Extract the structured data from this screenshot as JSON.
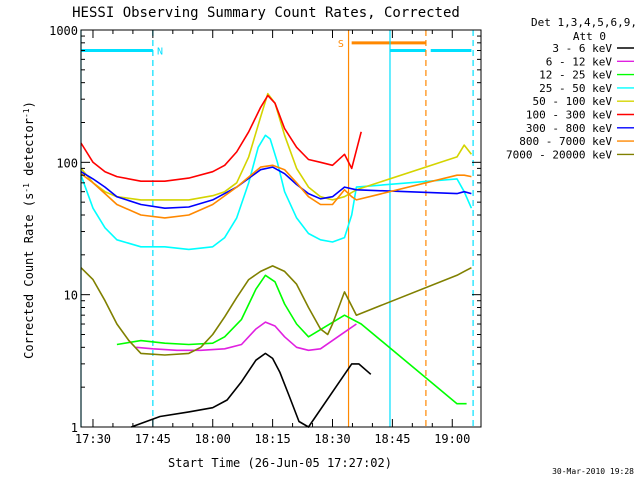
{
  "chart_data": {
    "type": "line",
    "title": "HESSI Observing Summary Count Rates, Corrected",
    "xlabel": "Start Time (26-Jun-05 17:27:02)",
    "ylabel": "Corrected Count Rate (s⁻¹ detector⁻¹)",
    "ylabel_main": "Corrected Count Rate (s",
    "ylabel_sup1": "-1",
    "ylabel_mid": " detector",
    "ylabel_sup2": "-1",
    "ylabel_end": ")",
    "scale_y": "log",
    "xlim": [
      17.45,
      19.12
    ],
    "ylim": [
      1,
      1000
    ],
    "x_ticks": [
      {
        "t": 17.5,
        "label": "17:30"
      },
      {
        "t": 17.75,
        "label": "17:45"
      },
      {
        "t": 18.0,
        "label": "18:00"
      },
      {
        "t": 18.25,
        "label": "18:15"
      },
      {
        "t": 18.5,
        "label": "18:30"
      },
      {
        "t": 18.75,
        "label": "18:45"
      },
      {
        "t": 19.0,
        "label": "19:00"
      }
    ],
    "y_ticks": [
      {
        "v": 1,
        "label": "1"
      },
      {
        "v": 10,
        "label": "10"
      },
      {
        "v": 100,
        "label": "100"
      },
      {
        "v": 1000,
        "label": "1000"
      }
    ],
    "legend": {
      "position": "right",
      "header": [
        "Det 1,3,4,5,6,9,",
        "Att 0"
      ]
    },
    "series": [
      {
        "name": "3 - 6 keV",
        "color": "#000000",
        "x": [
          17.66,
          17.78,
          17.9,
          18.0,
          18.06,
          18.12,
          18.18,
          18.22,
          18.25,
          18.28,
          18.32,
          18.36,
          18.4,
          18.58,
          18.61,
          18.66
        ],
        "y": [
          1,
          1.2,
          1.3,
          1.4,
          1.6,
          2.2,
          3.2,
          3.6,
          3.3,
          2.6,
          1.7,
          1.1,
          1,
          3,
          3,
          2.5
        ]
      },
      {
        "name": "6 - 12 keV",
        "color": "#e020e0",
        "x": [
          17.68,
          17.75,
          17.85,
          17.95,
          18.05,
          18.12,
          18.18,
          18.22,
          18.26,
          18.3,
          18.35,
          18.4,
          18.45,
          18.55,
          18.6
        ],
        "y": [
          4.0,
          3.9,
          3.8,
          3.8,
          3.9,
          4.2,
          5.5,
          6.2,
          5.8,
          4.8,
          4.0,
          3.8,
          3.9,
          5.2,
          6.0
        ]
      },
      {
        "name": "12 - 25 keV",
        "color": "#00ff00",
        "x": [
          17.6,
          17.7,
          17.8,
          17.9,
          18.0,
          18.05,
          18.12,
          18.18,
          18.22,
          18.26,
          18.3,
          18.35,
          18.4,
          18.55,
          18.62,
          19.02,
          19.06
        ],
        "y": [
          4.2,
          4.5,
          4.3,
          4.2,
          4.3,
          4.8,
          6.5,
          11,
          14,
          12.5,
          8.5,
          6,
          4.8,
          7,
          6,
          1.5,
          1.5
        ]
      },
      {
        "name": "25 - 50 keV",
        "color": "#00ffff",
        "x": [
          17.45,
          17.5,
          17.55,
          17.6,
          17.7,
          17.8,
          17.9,
          18.0,
          18.05,
          18.1,
          18.15,
          18.19,
          18.22,
          18.24,
          18.27,
          18.3,
          18.35,
          18.4,
          18.45,
          18.5,
          18.55,
          18.58,
          18.6,
          19.02,
          19.05,
          19.08
        ],
        "y": [
          80,
          45,
          32,
          26,
          23,
          23,
          22,
          23,
          27,
          38,
          70,
          130,
          160,
          150,
          100,
          60,
          38,
          29,
          26,
          25,
          27,
          40,
          65,
          75,
          60,
          45
        ]
      },
      {
        "name": "50 - 100 keV",
        "color": "#d4d400",
        "x": [
          17.45,
          17.5,
          17.55,
          17.6,
          17.7,
          17.8,
          17.9,
          18.0,
          18.05,
          18.1,
          18.15,
          18.2,
          18.23,
          18.26,
          18.3,
          18.35,
          18.4,
          18.45,
          18.5,
          18.55,
          18.6,
          19.02,
          19.05,
          19.08
        ],
        "y": [
          90,
          70,
          60,
          55,
          52,
          52,
          52,
          56,
          60,
          70,
          110,
          220,
          330,
          280,
          160,
          90,
          65,
          55,
          52,
          55,
          62,
          110,
          135,
          115
        ]
      },
      {
        "name": "100 - 300 keV",
        "color": "#ff0000",
        "x": [
          17.45,
          17.5,
          17.55,
          17.6,
          17.7,
          17.8,
          17.9,
          18.0,
          18.05,
          18.1,
          18.15,
          18.2,
          18.23,
          18.26,
          18.3,
          18.35,
          18.4,
          18.45,
          18.5,
          18.55,
          18.58,
          18.62
        ],
        "y": [
          140,
          100,
          85,
          78,
          72,
          72,
          76,
          85,
          95,
          120,
          170,
          260,
          320,
          280,
          180,
          130,
          105,
          100,
          95,
          115,
          90,
          170
        ]
      },
      {
        "name": "300 - 800 keV",
        "color": "#0000ff",
        "x": [
          17.45,
          17.5,
          17.55,
          17.6,
          17.7,
          17.8,
          17.9,
          18.0,
          18.1,
          18.2,
          18.25,
          18.3,
          18.35,
          18.4,
          18.45,
          18.5,
          18.55,
          18.6,
          19.02,
          19.05,
          19.08
        ],
        "y": [
          85,
          75,
          65,
          55,
          48,
          45,
          46,
          52,
          65,
          88,
          92,
          82,
          68,
          58,
          53,
          55,
          65,
          62,
          58,
          60,
          58
        ]
      },
      {
        "name": "800 - 7000 keV",
        "color": "#ff8800",
        "x": [
          17.45,
          17.5,
          17.55,
          17.6,
          17.7,
          17.8,
          17.9,
          18.0,
          18.1,
          18.2,
          18.25,
          18.3,
          18.35,
          18.4,
          18.45,
          18.5,
          18.55,
          18.58,
          18.6,
          19.02,
          19.05,
          19.08
        ],
        "y": [
          82,
          70,
          58,
          48,
          40,
          38,
          40,
          48,
          65,
          92,
          95,
          88,
          70,
          55,
          48,
          48,
          62,
          55,
          52,
          80,
          80,
          78
        ]
      },
      {
        "name": "7000 - 20000 keV",
        "color": "#808000",
        "x": [
          17.45,
          17.5,
          17.55,
          17.6,
          17.65,
          17.7,
          17.8,
          17.9,
          17.95,
          18.0,
          18.05,
          18.1,
          18.15,
          18.2,
          18.25,
          18.3,
          18.35,
          18.4,
          18.45,
          18.48,
          18.5,
          18.55,
          18.6,
          19.02,
          19.05,
          19.08
        ],
        "y": [
          16,
          13,
          9,
          6,
          4.5,
          3.6,
          3.5,
          3.6,
          4.0,
          5.0,
          6.8,
          9.5,
          13,
          15,
          16.5,
          15,
          12,
          8,
          5.5,
          5,
          6,
          10.5,
          7,
          14,
          15,
          16
        ]
      }
    ],
    "annotations": [
      {
        "type": "bar",
        "label": "N",
        "color": "#00e0ff",
        "x0": 17.45,
        "x1": 17.75,
        "y": 700,
        "label_t": 17.78
      },
      {
        "type": "bar",
        "label": "S",
        "color": "#ff8800",
        "x0": 18.58,
        "x1": 18.89,
        "y": 800,
        "label_t": 18.535
      },
      {
        "type": "bar",
        "label": "",
        "color": "#00e0ff",
        "x0": 18.74,
        "x1": 18.89,
        "y": 700
      },
      {
        "type": "bar",
        "label": "",
        "color": "#00e0ff",
        "x0": 18.91,
        "x1": 19.08,
        "y": 700
      },
      {
        "type": "vline",
        "t": 17.45,
        "color": "#00e0ff",
        "dash": false
      },
      {
        "type": "vline",
        "t": 17.75,
        "color": "#00e0ff",
        "dash": true
      },
      {
        "type": "vline",
        "t": 18.567,
        "color": "#ff8800",
        "dash": false
      },
      {
        "type": "vline",
        "t": 18.74,
        "color": "#00e0ff",
        "dash": false
      },
      {
        "type": "vline",
        "t": 18.89,
        "color": "#ff8800",
        "dash": true
      },
      {
        "type": "vline",
        "t": 19.087,
        "color": "#00e0ff",
        "dash": true
      }
    ]
  },
  "timestamp": "30-Mar-2010 19:28"
}
